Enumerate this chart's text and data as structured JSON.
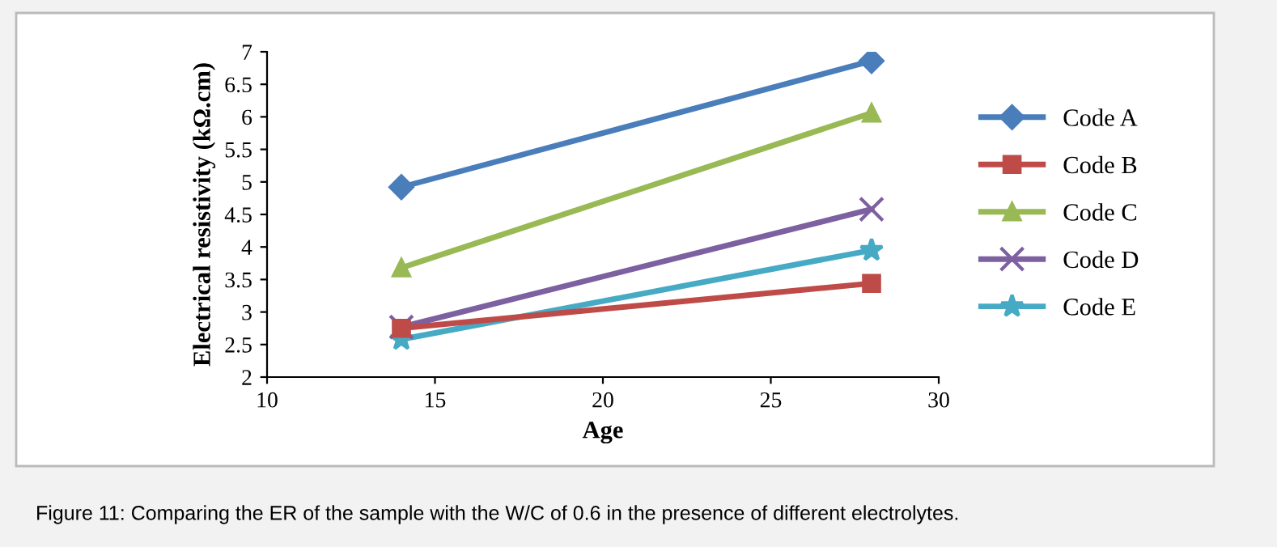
{
  "chart_data": {
    "type": "line",
    "xlabel": "Age",
    "ylabel": "Electrical resistivity (kΩ.cm)",
    "x": [
      14,
      28
    ],
    "series": [
      {
        "name": "Code A",
        "color": "#4a7ebb",
        "values": [
          4.92,
          6.86
        ],
        "marker": "diamond"
      },
      {
        "name": "Code B",
        "color": "#be4b48",
        "values": [
          2.75,
          3.44
        ],
        "marker": "square"
      },
      {
        "name": "Code C",
        "color": "#98b954",
        "values": [
          3.68,
          6.06
        ],
        "marker": "triangle"
      },
      {
        "name": "Code D",
        "color": "#7d60a0",
        "values": [
          2.77,
          4.58
        ],
        "marker": "cross"
      },
      {
        "name": "Code E",
        "color": "#46aac5",
        "values": [
          2.58,
          3.95
        ],
        "marker": "star"
      }
    ],
    "xlim": [
      10,
      30
    ],
    "xticks": [
      10,
      15,
      20,
      25,
      30
    ],
    "ylim": [
      2,
      7
    ],
    "yticks": [
      2,
      2.5,
      3,
      3.5,
      4,
      4.5,
      5,
      5.5,
      6,
      6.5,
      7
    ],
    "grid": false,
    "legend": "right",
    "line_style": "solid",
    "annotations": [
      "Figure 11: Comparing the ER of the sample with the W/C of 0.6 in the presence of different electrolytes."
    ]
  }
}
